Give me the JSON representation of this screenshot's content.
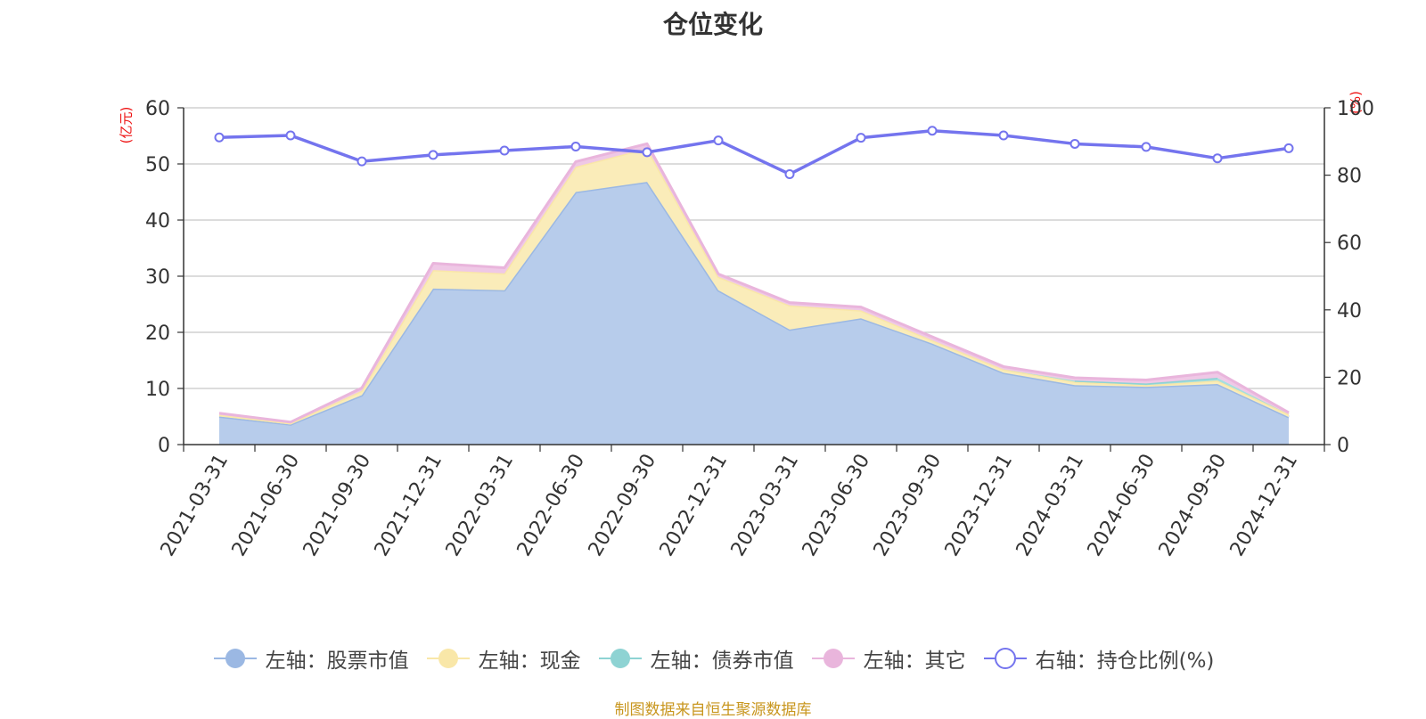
{
  "title": "仓位变化",
  "footer": "制图数据来自恒生聚源数据库",
  "left_axis_unit": "(亿元)",
  "right_axis_unit": "(%)",
  "legend": [
    {
      "label": "左轴：股票市值",
      "color": "#9bb8e3",
      "style": "filled-circle"
    },
    {
      "label": "左轴：现金",
      "color": "#f9e7a8",
      "style": "filled-circle"
    },
    {
      "label": "左轴：债券市值",
      "color": "#8ed3d3",
      "style": "filled-circle"
    },
    {
      "label": "左轴：其它",
      "color": "#e9b5dc",
      "style": "filled-circle"
    },
    {
      "label": "右轴：持仓比例(%)",
      "color": "#7474ee",
      "style": "hollow-circle"
    }
  ],
  "chart_data": {
    "type": "area",
    "categories": [
      "2021-03-31",
      "2021-06-30",
      "2021-09-30",
      "2021-12-31",
      "2022-03-31",
      "2022-06-30",
      "2022-09-30",
      "2022-12-31",
      "2023-03-31",
      "2023-06-30",
      "2023-09-30",
      "2023-12-31",
      "2024-03-31",
      "2024-06-30",
      "2024-09-30",
      "2024-12-31"
    ],
    "stacked": true,
    "series": [
      {
        "name": "左轴：股票市值",
        "axis": "left",
        "color": "#9bb8e3",
        "values": [
          5.0,
          3.6,
          8.8,
          27.8,
          27.5,
          45.0,
          46.8,
          27.5,
          20.5,
          22.5,
          18.0,
          12.8,
          10.6,
          10.3,
          10.8,
          4.9
        ]
      },
      {
        "name": "左轴：现金",
        "axis": "left",
        "color": "#f9e7a8",
        "values": [
          0.3,
          0.2,
          0.8,
          3.3,
          3.0,
          4.5,
          6.0,
          2.4,
          4.3,
          1.4,
          0.6,
          0.6,
          0.6,
          0.3,
          0.6,
          0.5
        ]
      },
      {
        "name": "左轴：债券市值",
        "axis": "left",
        "color": "#8ed3d3",
        "values": [
          0,
          0,
          0,
          0,
          0,
          0,
          0,
          0,
          0,
          0,
          0,
          0,
          0.2,
          0.3,
          0.5,
          0
        ]
      },
      {
        "name": "左轴：其它",
        "axis": "left",
        "color": "#e9b5dc",
        "values": [
          0.3,
          0.2,
          0.5,
          1.2,
          1.0,
          0.9,
          0.8,
          0.5,
          0.5,
          0.6,
          0.6,
          0.5,
          0.5,
          0.6,
          1.0,
          0.3
        ]
      },
      {
        "name": "右轴：持仓比例(%)",
        "axis": "right",
        "type": "line",
        "color": "#7474ee",
        "values": [
          91.2,
          91.8,
          84.1,
          86.0,
          87.3,
          88.5,
          86.8,
          90.3,
          80.3,
          91.1,
          93.2,
          91.8,
          89.3,
          88.4,
          85.0,
          88.0
        ]
      }
    ],
    "y_left": {
      "min": 0,
      "max": 60,
      "ticks": [
        0,
        10,
        20,
        30,
        40,
        50,
        60
      ]
    },
    "y_right": {
      "min": 0,
      "max": 100,
      "ticks": [
        0,
        20,
        40,
        60,
        80,
        100
      ]
    },
    "grid": true,
    "legend_position": "bottom"
  }
}
